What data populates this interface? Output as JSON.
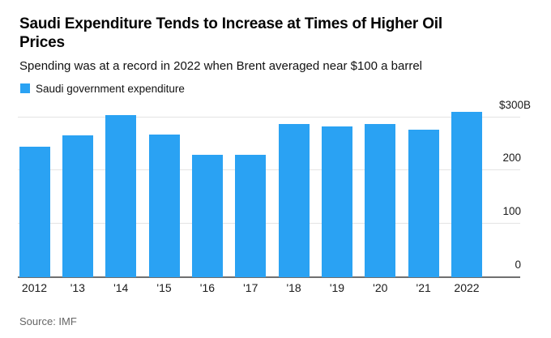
{
  "header": {
    "title": "Saudi Expenditure Tends to Increase at Times of Higher Oil\nPrices",
    "subtitle": "Spending was at a record in 2022 when Brent averaged near $100 a barrel"
  },
  "legend": {
    "label": "Saudi government expenditure",
    "swatch_color": "#2aa2f3"
  },
  "chart_data": {
    "type": "bar",
    "title": "Saudi government expenditure",
    "unit": "USD billions",
    "categories": [
      "2012",
      "'13",
      "'14",
      "'15",
      "'16",
      "'17",
      "'18",
      "'19",
      "'20",
      "'21",
      "2022"
    ],
    "values": [
      245,
      266,
      304,
      267,
      229,
      230,
      287,
      283,
      287,
      277,
      311
    ],
    "ylim": [
      0,
      320
    ],
    "yticks": [
      {
        "value": 0,
        "label": "0"
      },
      {
        "value": 100,
        "label": "100"
      },
      {
        "value": 200,
        "label": "200"
      },
      {
        "value": 300,
        "label": "$300B"
      }
    ],
    "grid": "horizontal",
    "legend_position": "top-left",
    "bar_color": "#2aa2f3",
    "gridline_color": "#e4e4e4",
    "baseline_color": "#707070"
  },
  "source": "Source: IMF"
}
